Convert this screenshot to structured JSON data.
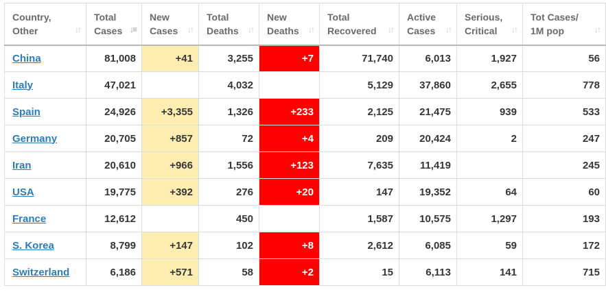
{
  "table": {
    "headers": [
      {
        "label": "Country,\nOther",
        "sort_icon": "sort-arrows-icon"
      },
      {
        "label": "Total\nCases",
        "sort_icon": "sort-descending-icon"
      },
      {
        "label": "New\nCases",
        "sort_icon": "sort-arrows-icon"
      },
      {
        "label": "Total\nDeaths",
        "sort_icon": "sort-arrows-icon"
      },
      {
        "label": "New\nDeaths",
        "sort_icon": "sort-arrows-icon"
      },
      {
        "label": "Total\nRecovered",
        "sort_icon": "sort-arrows-icon"
      },
      {
        "label": "Active\nCases",
        "sort_icon": "sort-arrows-icon"
      },
      {
        "label": "Serious,\nCritical",
        "sort_icon": "sort-arrows-icon"
      },
      {
        "label": "Tot Cases/\n1M pop",
        "sort_icon": "sort-arrows-icon"
      }
    ],
    "rows": [
      {
        "country": "China",
        "total_cases": "81,008",
        "new_cases": "+41",
        "total_deaths": "3,255",
        "new_deaths": "+7",
        "total_recovered": "71,740",
        "active_cases": "6,013",
        "serious_critical": "1,927",
        "cases_per_1m": "56"
      },
      {
        "country": "Italy",
        "total_cases": "47,021",
        "new_cases": "",
        "total_deaths": "4,032",
        "new_deaths": "",
        "total_recovered": "5,129",
        "active_cases": "37,860",
        "serious_critical": "2,655",
        "cases_per_1m": "778"
      },
      {
        "country": "Spain",
        "total_cases": "24,926",
        "new_cases": "+3,355",
        "total_deaths": "1,326",
        "new_deaths": "+233",
        "total_recovered": "2,125",
        "active_cases": "21,475",
        "serious_critical": "939",
        "cases_per_1m": "533"
      },
      {
        "country": "Germany",
        "total_cases": "20,705",
        "new_cases": "+857",
        "total_deaths": "72",
        "new_deaths": "+4",
        "total_recovered": "209",
        "active_cases": "20,424",
        "serious_critical": "2",
        "cases_per_1m": "247"
      },
      {
        "country": "Iran",
        "total_cases": "20,610",
        "new_cases": "+966",
        "total_deaths": "1,556",
        "new_deaths": "+123",
        "total_recovered": "7,635",
        "active_cases": "11,419",
        "serious_critical": "",
        "cases_per_1m": "245"
      },
      {
        "country": "USA",
        "total_cases": "19,775",
        "new_cases": "+392",
        "total_deaths": "276",
        "new_deaths": "+20",
        "total_recovered": "147",
        "active_cases": "19,352",
        "serious_critical": "64",
        "cases_per_1m": "60"
      },
      {
        "country": "France",
        "total_cases": "12,612",
        "new_cases": "",
        "total_deaths": "450",
        "new_deaths": "",
        "total_recovered": "1,587",
        "active_cases": "10,575",
        "serious_critical": "1,297",
        "cases_per_1m": "193"
      },
      {
        "country": "S. Korea",
        "total_cases": "8,799",
        "new_cases": "+147",
        "total_deaths": "102",
        "new_deaths": "+8",
        "total_recovered": "2,612",
        "active_cases": "6,085",
        "serious_critical": "59",
        "cases_per_1m": "172"
      },
      {
        "country": "Switzerland",
        "total_cases": "6,186",
        "new_cases": "+571",
        "total_deaths": "58",
        "new_deaths": "+2",
        "total_recovered": "15",
        "active_cases": "6,113",
        "serious_critical": "141",
        "cases_per_1m": "715"
      }
    ]
  },
  "colors": {
    "new_cases_fill": "#fdedb0",
    "new_deaths_fill": "#ff0000",
    "link": "#2a7db8",
    "header_text": "#6a6a6a",
    "cell_text": "#363636"
  }
}
